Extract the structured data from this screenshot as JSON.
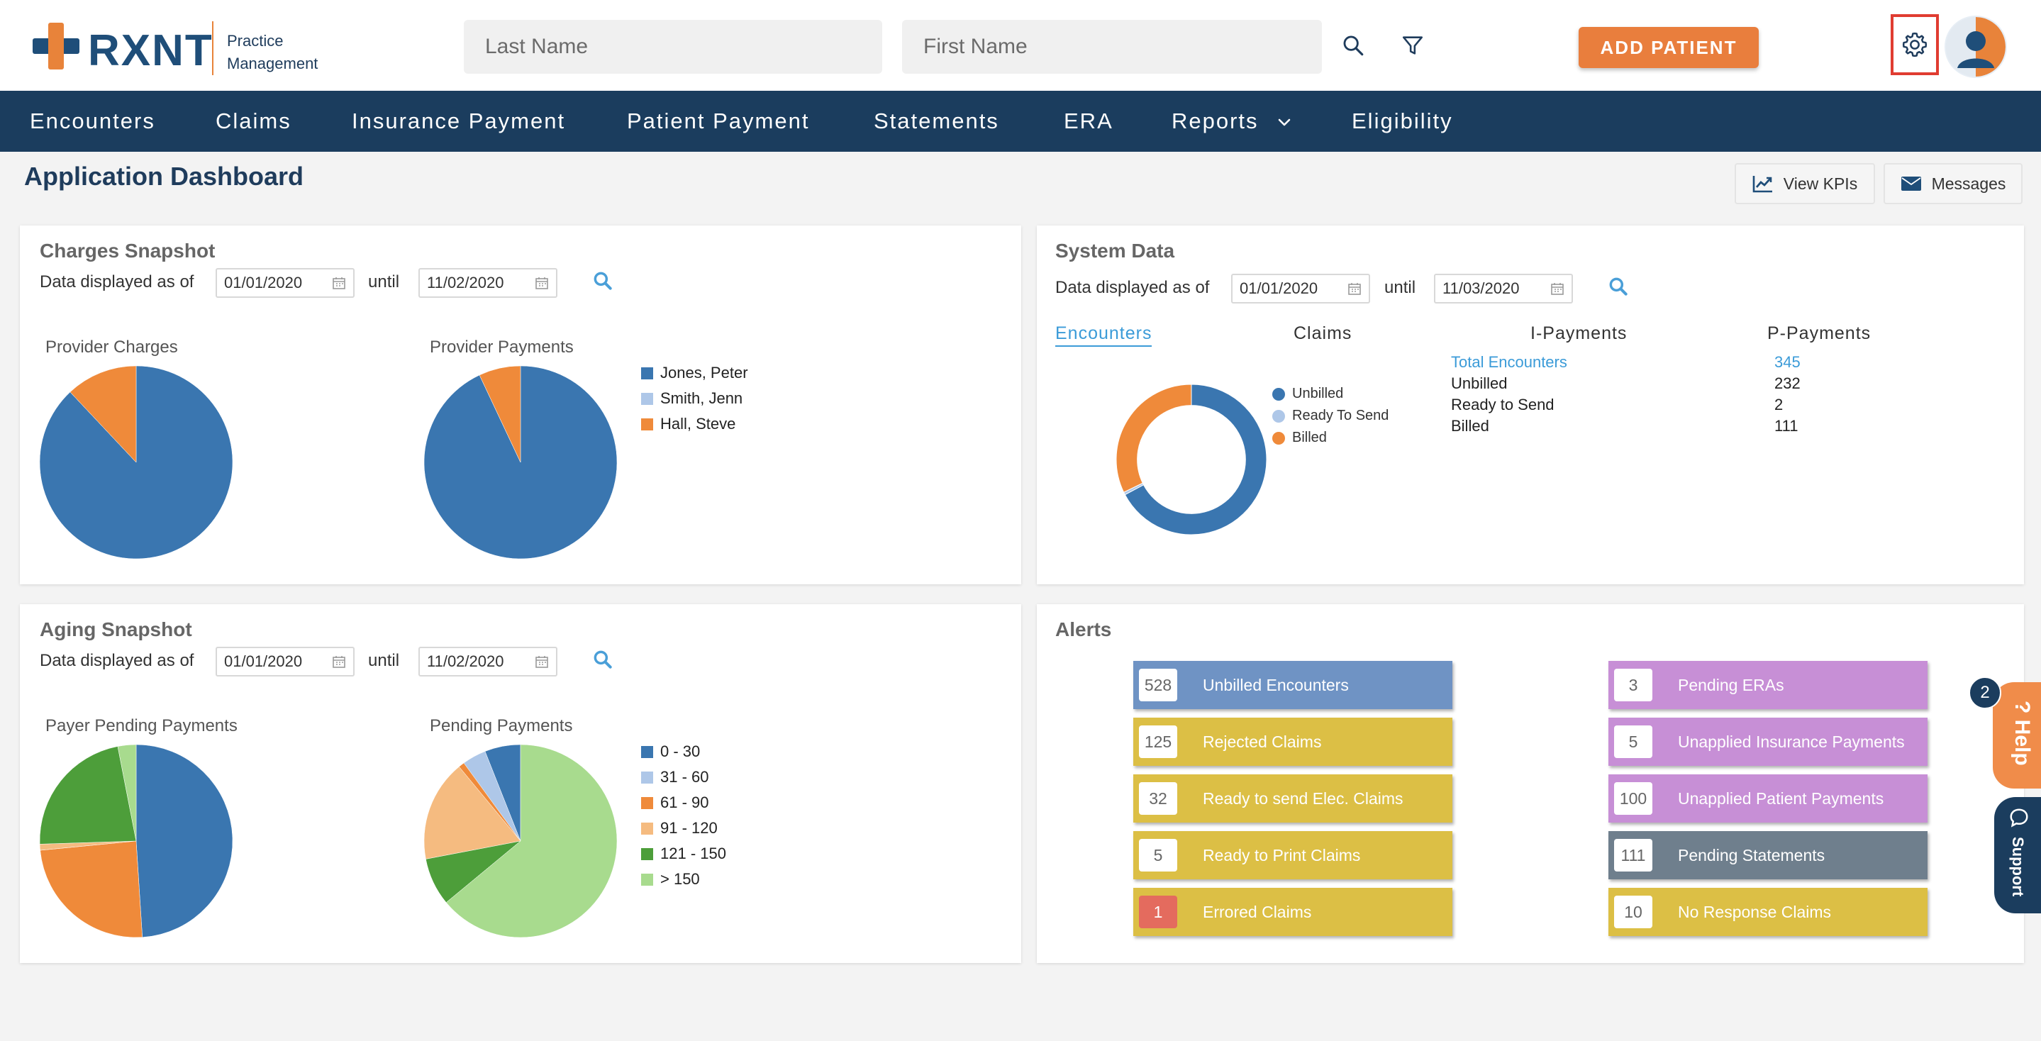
{
  "header": {
    "logo_text": "RXNT",
    "logo_sub_line1": "Practice",
    "logo_sub_line2": "Management",
    "last_name_placeholder": "Last Name",
    "first_name_placeholder": "First Name",
    "add_patient_label": "ADD PATIENT"
  },
  "nav": {
    "items": [
      "Encounters",
      "Claims",
      "Insurance Payment",
      "Patient Payment",
      "Statements",
      "ERA",
      "Reports",
      "Eligibility"
    ]
  },
  "page": {
    "title": "Application Dashboard",
    "view_kpis": "View KPIs",
    "messages": "Messages"
  },
  "charges": {
    "title": "Charges Snapshot",
    "displayed_as_of": "Data displayed as of",
    "from": "01/01/2020",
    "until": "until",
    "to": "11/02/2020",
    "provider_charges": "Provider Charges",
    "provider_payments": "Provider Payments",
    "legend": [
      "Jones, Peter",
      "Smith, Jenn",
      "Hall, Steve"
    ],
    "colors": [
      "#3a76b0",
      "#aec7e8",
      "#ef8a3a"
    ]
  },
  "system": {
    "title": "System Data",
    "displayed_as_of": "Data displayed as of",
    "from": "01/01/2020",
    "until": "until",
    "to": "11/03/2020",
    "tabs": [
      "Encounters",
      "Claims",
      "I-Payments",
      "P-Payments"
    ],
    "donut_legend": [
      "Unbilled",
      "Ready To Send",
      "Billed"
    ],
    "stats_labels": [
      "Total Encounters",
      "Unbilled",
      "Ready to Send",
      "Billed"
    ],
    "stats_values": [
      "345",
      "232",
      "2",
      "111"
    ]
  },
  "aging": {
    "title": "Aging Snapshot",
    "displayed_as_of": "Data displayed as of",
    "from": "01/01/2020",
    "until": "until",
    "to": "11/02/2020",
    "payer_pending": "Payer Pending Payments",
    "pending_payments": "Pending Payments",
    "legend": [
      "0 - 30",
      "31 - 60",
      "61 - 90",
      "91 - 120",
      "121 - 150",
      "> 150"
    ],
    "colors": [
      "#3a76b0",
      "#aec7e8",
      "#ef8a3a",
      "#f5bb80",
      "#4d9e3a",
      "#a8db8e"
    ]
  },
  "alerts": {
    "title": "Alerts",
    "left": [
      {
        "count": "528",
        "label": "Unbilled Encounters",
        "color": "#6f93c4"
      },
      {
        "count": "125",
        "label": "Rejected Claims",
        "color": "#dcbf45"
      },
      {
        "count": "32",
        "label": "Ready to send Elec. Claims",
        "color": "#dcbf45"
      },
      {
        "count": "5",
        "label": "Ready to Print Claims",
        "color": "#dcbf45"
      },
      {
        "count": "1",
        "label": "Errored Claims",
        "color": "#dcbf45"
      }
    ],
    "right": [
      {
        "count": "3",
        "label": "Pending ERAs",
        "color": "#c78fd6"
      },
      {
        "count": "5",
        "label": "Unapplied Insurance Payments",
        "color": "#c78fd6"
      },
      {
        "count": "100",
        "label": "Unapplied Patient Payments",
        "color": "#c78fd6"
      },
      {
        "count": "111",
        "label": "Pending Statements",
        "color": "#6f7f8d"
      },
      {
        "count": "10",
        "label": "No Response Claims",
        "color": "#dcbf45"
      }
    ]
  },
  "side": {
    "badge": "2",
    "help": "Help",
    "support": "Support"
  },
  "chart_data": [
    {
      "type": "pie",
      "title": "Provider Charges",
      "categories": [
        "Jones, Peter",
        "Hall, Steve"
      ],
      "values": [
        88,
        12
      ]
    },
    {
      "type": "pie",
      "title": "Provider Payments",
      "categories": [
        "Jones, Peter",
        "Hall, Steve"
      ],
      "values": [
        93,
        7
      ]
    },
    {
      "type": "pie",
      "title": "Encounters",
      "categories": [
        "Unbilled",
        "Ready To Send",
        "Billed"
      ],
      "values": [
        232,
        2,
        111
      ]
    },
    {
      "type": "pie",
      "title": "Payer Pending Payments",
      "categories": [
        "0 - 30",
        "31 - 60",
        "61 - 90",
        "91 - 120",
        "121 - 150",
        "> 150"
      ],
      "values": [
        48,
        0,
        24,
        1,
        22,
        3
      ]
    },
    {
      "type": "pie",
      "title": "Pending Payments",
      "categories": [
        "0 - 30",
        "31 - 60",
        "61 - 90",
        "91 - 120",
        "121 - 150",
        "> 150"
      ],
      "values": [
        6,
        4,
        1,
        17,
        8,
        64
      ]
    }
  ]
}
